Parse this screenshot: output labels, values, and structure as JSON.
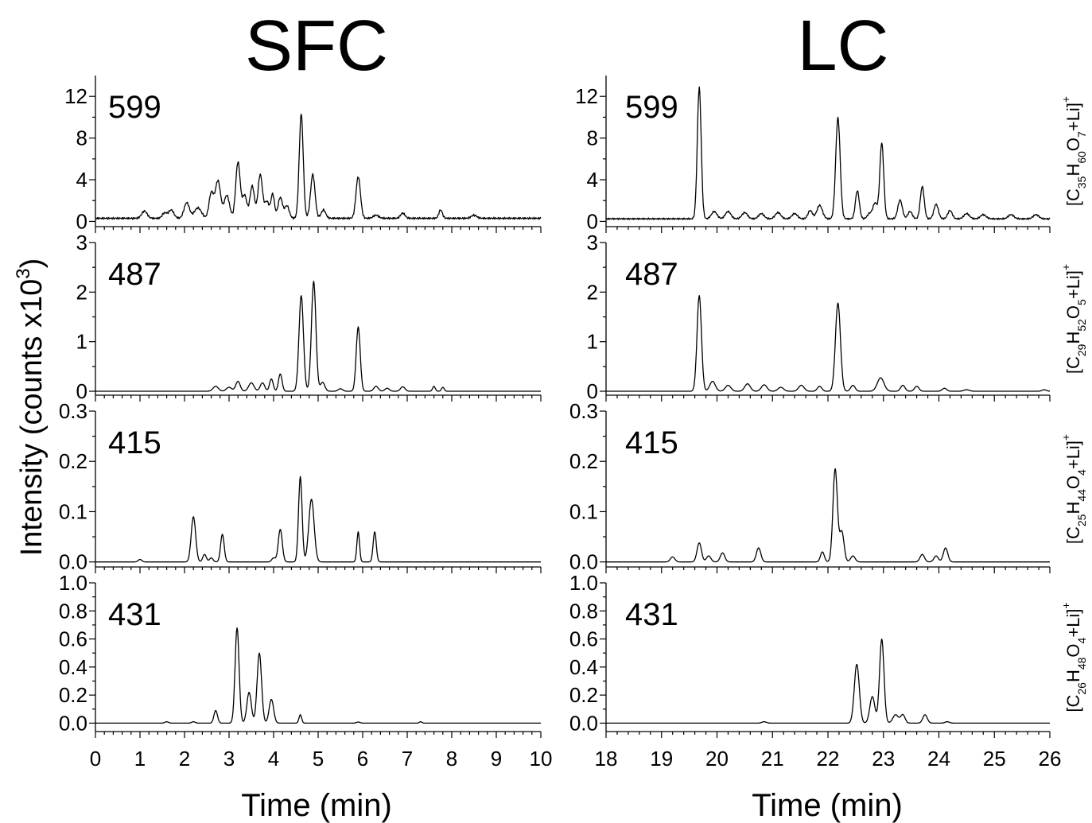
{
  "figure": {
    "y_axis_label": "Intensity (counts x10",
    "y_axis_label_sup": "3",
    "y_axis_label_end": ")"
  },
  "columns": [
    {
      "title": "SFC",
      "xlabel": "Time (min)",
      "xlim": [
        0,
        10
      ],
      "xticks": [
        "0",
        "1",
        "2",
        "3",
        "4",
        "5",
        "6",
        "7",
        "8",
        "9",
        "10"
      ]
    },
    {
      "title": "LC",
      "xlabel": "Time (min)",
      "xlim": [
        18,
        26
      ],
      "xticks": [
        "18",
        "19",
        "20",
        "21",
        "22",
        "23",
        "24",
        "25",
        "26"
      ]
    }
  ],
  "rows": [
    {
      "mass_label": "599",
      "formula": {
        "C": "35",
        "H": "60",
        "O": "7",
        "adduct": "+Li]",
        "charge": "+"
      },
      "ylim": [
        -0.5,
        14
      ],
      "yticks": [
        "0",
        "4",
        "8",
        "12"
      ]
    },
    {
      "mass_label": "487",
      "formula": {
        "C": "29",
        "H": "52",
        "O": "5",
        "adduct": "+Li]",
        "charge": "+"
      },
      "ylim": [
        -0.08,
        3
      ],
      "yticks": [
        "0",
        "1",
        "2",
        "3"
      ]
    },
    {
      "mass_label": "415",
      "formula": {
        "C": "25",
        "H": "44",
        "O": "4",
        "adduct": "+Li]",
        "charge": "+"
      },
      "ylim": [
        -0.01,
        0.3
      ],
      "yticks": [
        "0.0",
        "0.1",
        "0.2",
        "0.3"
      ]
    },
    {
      "mass_label": "431",
      "formula": {
        "C": "26",
        "H": "48",
        "O": "4",
        "adduct": "+Li]",
        "charge": "+"
      },
      "ylim": [
        -0.06,
        1.0
      ],
      "yticks": [
        "0.0",
        "0.2",
        "0.4",
        "0.6",
        "0.8",
        "1.0"
      ]
    }
  ],
  "chart_data": [
    {
      "type": "line",
      "title": "SFC",
      "panel": "599",
      "xlabel": "Time (min)",
      "ylabel": "Intensity (counts x10^3)",
      "xlim": [
        0,
        10
      ],
      "ylim": [
        -0.5,
        14
      ],
      "baseline": 0.3,
      "peaks": [
        [
          1.1,
          0.7,
          0.06
        ],
        [
          1.55,
          0.5,
          0.05
        ],
        [
          1.7,
          0.8,
          0.06
        ],
        [
          2.05,
          1.5,
          0.06
        ],
        [
          2.3,
          1.0,
          0.08
        ],
        [
          2.6,
          2.4,
          0.05
        ],
        [
          2.75,
          3.6,
          0.06
        ],
        [
          2.95,
          2.2,
          0.06
        ],
        [
          3.2,
          5.4,
          0.05
        ],
        [
          3.35,
          2.2,
          0.05
        ],
        [
          3.52,
          3.1,
          0.05
        ],
        [
          3.7,
          4.2,
          0.05
        ],
        [
          3.85,
          1.6,
          0.05
        ],
        [
          3.98,
          2.3,
          0.04
        ],
        [
          4.15,
          2.0,
          0.05
        ],
        [
          4.3,
          1.2,
          0.05
        ],
        [
          4.62,
          10.0,
          0.045
        ],
        [
          4.88,
          4.2,
          0.05
        ],
        [
          5.12,
          0.8,
          0.05
        ],
        [
          5.9,
          4.0,
          0.05
        ],
        [
          6.3,
          0.3,
          0.06
        ],
        [
          6.9,
          0.5,
          0.05
        ],
        [
          7.75,
          0.8,
          0.04
        ],
        [
          8.5,
          0.3,
          0.06
        ]
      ]
    },
    {
      "type": "line",
      "title": "SFC",
      "panel": "487",
      "xlabel": "Time (min)",
      "ylabel": "Intensity (counts x10^3)",
      "xlim": [
        0,
        10
      ],
      "ylim": [
        -0.08,
        3
      ],
      "baseline": 0,
      "peaks": [
        [
          2.7,
          0.1,
          0.06
        ],
        [
          3.0,
          0.08,
          0.06
        ],
        [
          3.2,
          0.2,
          0.05
        ],
        [
          3.5,
          0.17,
          0.06
        ],
        [
          3.75,
          0.17,
          0.05
        ],
        [
          3.95,
          0.25,
          0.04
        ],
        [
          4.15,
          0.35,
          0.04
        ],
        [
          4.62,
          1.93,
          0.05
        ],
        [
          4.9,
          2.22,
          0.05
        ],
        [
          5.1,
          0.18,
          0.05
        ],
        [
          5.5,
          0.05,
          0.05
        ],
        [
          5.9,
          1.3,
          0.045
        ],
        [
          6.3,
          0.1,
          0.05
        ],
        [
          6.55,
          0.06,
          0.05
        ],
        [
          6.9,
          0.09,
          0.05
        ],
        [
          7.6,
          0.1,
          0.03
        ],
        [
          7.8,
          0.08,
          0.03
        ]
      ]
    },
    {
      "type": "line",
      "title": "SFC",
      "panel": "415",
      "xlabel": "Time (min)",
      "ylabel": "Intensity (counts x10^3)",
      "xlim": [
        0,
        10
      ],
      "ylim": [
        -0.01,
        0.3
      ],
      "baseline": 0,
      "peaks": [
        [
          1.0,
          0.005,
          0.04
        ],
        [
          2.2,
          0.09,
          0.05
        ],
        [
          2.45,
          0.015,
          0.04
        ],
        [
          2.6,
          0.008,
          0.04
        ],
        [
          2.85,
          0.055,
          0.04
        ],
        [
          4.0,
          0.008,
          0.04
        ],
        [
          4.15,
          0.065,
          0.045
        ],
        [
          4.6,
          0.17,
          0.04
        ],
        [
          4.85,
          0.125,
          0.06
        ],
        [
          5.9,
          0.06,
          0.03
        ],
        [
          6.27,
          0.06,
          0.035
        ]
      ]
    },
    {
      "type": "line",
      "title": "SFC",
      "panel": "431",
      "xlabel": "Time (min)",
      "ylabel": "Intensity (counts x10^3)",
      "xlim": [
        0,
        10
      ],
      "ylim": [
        -0.06,
        1.0
      ],
      "baseline": 0,
      "peaks": [
        [
          1.6,
          0.01,
          0.04
        ],
        [
          2.2,
          0.01,
          0.04
        ],
        [
          2.7,
          0.09,
          0.04
        ],
        [
          3.18,
          0.68,
          0.045
        ],
        [
          3.45,
          0.22,
          0.05
        ],
        [
          3.68,
          0.5,
          0.05
        ],
        [
          3.95,
          0.17,
          0.05
        ],
        [
          4.6,
          0.06,
          0.03
        ],
        [
          5.9,
          0.008,
          0.04
        ],
        [
          7.3,
          0.01,
          0.03
        ]
      ]
    },
    {
      "type": "line",
      "title": "LC",
      "panel": "599",
      "xlabel": "Time (min)",
      "ylabel": "Intensity (counts x10^3)",
      "xlim": [
        18,
        26
      ],
      "ylim": [
        -0.5,
        14
      ],
      "baseline": 0.25,
      "peaks": [
        [
          19.68,
          12.6,
          0.035
        ],
        [
          19.95,
          0.7,
          0.05
        ],
        [
          20.2,
          0.7,
          0.05
        ],
        [
          20.5,
          0.6,
          0.05
        ],
        [
          20.8,
          0.5,
          0.05
        ],
        [
          21.1,
          0.6,
          0.05
        ],
        [
          21.4,
          0.5,
          0.05
        ],
        [
          21.68,
          0.8,
          0.04
        ],
        [
          21.85,
          1.3,
          0.05
        ],
        [
          22.18,
          9.7,
          0.04
        ],
        [
          22.53,
          2.7,
          0.035
        ],
        [
          22.75,
          0.5,
          0.04
        ],
        [
          22.85,
          1.5,
          0.04
        ],
        [
          22.97,
          7.3,
          0.035
        ],
        [
          23.3,
          1.8,
          0.04
        ],
        [
          23.48,
          0.7,
          0.04
        ],
        [
          23.7,
          3.1,
          0.035
        ],
        [
          23.95,
          1.4,
          0.04
        ],
        [
          24.2,
          0.8,
          0.04
        ],
        [
          24.5,
          0.5,
          0.05
        ],
        [
          24.8,
          0.4,
          0.05
        ],
        [
          25.3,
          0.4,
          0.05
        ],
        [
          25.75,
          0.4,
          0.05
        ]
      ]
    },
    {
      "type": "line",
      "title": "LC",
      "panel": "487",
      "xlabel": "Time (min)",
      "ylabel": "Intensity (counts x10^3)",
      "xlim": [
        18,
        26
      ],
      "ylim": [
        -0.08,
        3
      ],
      "baseline": 0,
      "peaks": [
        [
          19.68,
          1.93,
          0.04
        ],
        [
          19.92,
          0.2,
          0.05
        ],
        [
          20.2,
          0.12,
          0.05
        ],
        [
          20.55,
          0.15,
          0.05
        ],
        [
          20.85,
          0.13,
          0.05
        ],
        [
          21.15,
          0.08,
          0.05
        ],
        [
          21.52,
          0.12,
          0.05
        ],
        [
          21.85,
          0.1,
          0.04
        ],
        [
          22.18,
          1.78,
          0.045
        ],
        [
          22.45,
          0.12,
          0.04
        ],
        [
          22.95,
          0.27,
          0.06
        ],
        [
          23.35,
          0.12,
          0.04
        ],
        [
          23.6,
          0.1,
          0.04
        ],
        [
          24.1,
          0.06,
          0.04
        ],
        [
          24.5,
          0.03,
          0.05
        ],
        [
          25.9,
          0.03,
          0.04
        ]
      ]
    },
    {
      "type": "line",
      "title": "LC",
      "panel": "415",
      "xlabel": "Time (min)",
      "ylabel": "Intensity (counts x10^3)",
      "xlim": [
        18,
        26
      ],
      "ylim": [
        -0.01,
        0.3
      ],
      "baseline": 0,
      "peaks": [
        [
          19.2,
          0.01,
          0.04
        ],
        [
          19.68,
          0.038,
          0.04
        ],
        [
          19.85,
          0.012,
          0.04
        ],
        [
          20.1,
          0.018,
          0.04
        ],
        [
          20.75,
          0.028,
          0.04
        ],
        [
          21.9,
          0.02,
          0.035
        ],
        [
          22.13,
          0.185,
          0.04
        ],
        [
          22.25,
          0.06,
          0.04
        ],
        [
          22.45,
          0.012,
          0.04
        ],
        [
          23.7,
          0.015,
          0.04
        ],
        [
          23.95,
          0.012,
          0.04
        ],
        [
          24.12,
          0.028,
          0.04
        ]
      ]
    },
    {
      "type": "line",
      "title": "LC",
      "panel": "431",
      "xlabel": "Time (min)",
      "ylabel": "Intensity (counts x10^3)",
      "xlim": [
        18,
        26
      ],
      "ylim": [
        -0.06,
        1.0
      ],
      "baseline": 0,
      "peaks": [
        [
          20.85,
          0.01,
          0.04
        ],
        [
          22.52,
          0.42,
          0.045
        ],
        [
          22.8,
          0.19,
          0.045
        ],
        [
          22.97,
          0.6,
          0.04
        ],
        [
          23.22,
          0.06,
          0.05
        ],
        [
          23.35,
          0.06,
          0.04
        ],
        [
          23.75,
          0.06,
          0.04
        ],
        [
          24.15,
          0.01,
          0.04
        ]
      ]
    }
  ]
}
